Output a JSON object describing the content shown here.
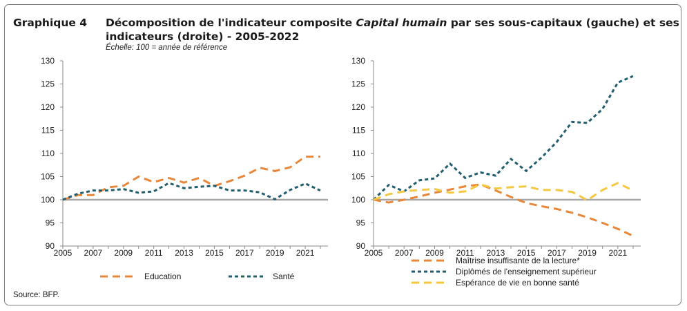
{
  "header": {
    "figure_label": "Graphique 4",
    "title_line1_a": "Décomposition de l'indicateur composite ",
    "title_line1_italic": "Capital humain",
    "title_line1_b": " par ses sous-capitaux (gauche) et ses",
    "title_line2": "indicateurs (droite) - 2005-2022",
    "subtitle": "Échelle: 100 = année de référence"
  },
  "source": "Source: BFP.",
  "chart_data": [
    {
      "type": "line",
      "x": [
        2005,
        2006,
        2007,
        2008,
        2009,
        2010,
        2011,
        2012,
        2013,
        2014,
        2015,
        2016,
        2017,
        2018,
        2019,
        2020,
        2021,
        2022
      ],
      "xticks": [
        "2005",
        "2007",
        "2009",
        "2011",
        "2013",
        "2015",
        "2017",
        "2019",
        "2021"
      ],
      "yticks": [
        "90",
        "95",
        "100",
        "105",
        "110",
        "115",
        "120",
        "125",
        "130"
      ],
      "ylim": [
        90,
        130
      ],
      "xlim": [
        2005,
        2022.5
      ],
      "reference_line": 100,
      "legend_position": "bottom",
      "series": [
        {
          "name": "Education",
          "color": "#e8873a",
          "dash": "long",
          "values": [
            100,
            101,
            101,
            102.7,
            103,
            105,
            103.8,
            104.7,
            103.7,
            104.7,
            103,
            104,
            105.2,
            106.9,
            106.2,
            107,
            109.3,
            109.3
          ]
        },
        {
          "name": "Santé",
          "color": "#215e6e",
          "dash": "short",
          "values": [
            100,
            101.3,
            102,
            102,
            102.3,
            101.5,
            101.8,
            103.6,
            102.5,
            102.8,
            103,
            102,
            102,
            101.6,
            100.1,
            102.1,
            103.5,
            102
          ]
        }
      ]
    },
    {
      "type": "line",
      "x": [
        2005,
        2006,
        2007,
        2008,
        2009,
        2010,
        2011,
        2012,
        2013,
        2014,
        2015,
        2016,
        2017,
        2018,
        2019,
        2020,
        2021,
        2022
      ],
      "xticks": [
        "2005",
        "2007",
        "2009",
        "2011",
        "2013",
        "2015",
        "2017",
        "2019",
        "2021"
      ],
      "yticks": [
        "90",
        "95",
        "100",
        "105",
        "110",
        "115",
        "120",
        "125",
        "130"
      ],
      "ylim": [
        90,
        130
      ],
      "xlim": [
        2005,
        2022.5
      ],
      "reference_line": 100,
      "legend_position": "bottom",
      "series": [
        {
          "name": "Maîtrise insuffisante de la lecture*",
          "color": "#e8873a",
          "dash": "long",
          "values": [
            100,
            99.4,
            100,
            100.7,
            101.5,
            102.2,
            102.9,
            103.3,
            102,
            100.6,
            99.3,
            98.6,
            98,
            97.2,
            96.2,
            95,
            93.7,
            92.2
          ]
        },
        {
          "name": "Diplômés de l'enseignement supérieur",
          "color": "#215e6e",
          "dash": "short",
          "values": [
            100,
            103.2,
            101.8,
            104.2,
            104.6,
            107.8,
            104.7,
            105.9,
            105.2,
            108.8,
            106.2,
            109.1,
            112.5,
            116.8,
            116.6,
            119.6,
            125.3,
            126.7
          ]
        },
        {
          "name": "Espérance de vie en bonne santé",
          "color": "#f5c842",
          "dash": "long",
          "values": [
            100,
            101.2,
            101.8,
            102.1,
            102.3,
            101.5,
            101.8,
            103.3,
            102.4,
            102.7,
            102.9,
            102.1,
            102.1,
            101.7,
            99.9,
            102.1,
            103.6,
            102
          ]
        }
      ]
    }
  ]
}
